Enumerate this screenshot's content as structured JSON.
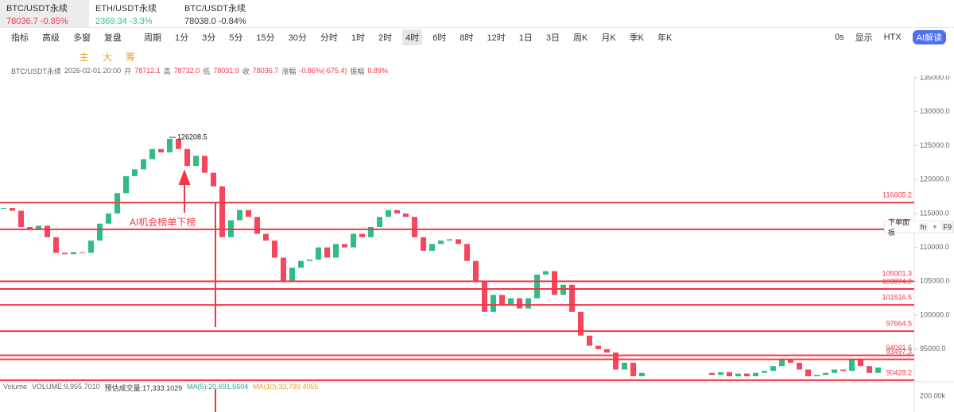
{
  "tabs": [
    {
      "symbol": "BTC/USDT永续",
      "price": "78036.7",
      "change": "-0.85%"
    },
    {
      "symbol": "ETH/USDT永续",
      "price": "2369.34",
      "change": "-3.3%"
    },
    {
      "symbol": "BTC/USDT永续",
      "price": "78038.0",
      "change": "-0.84%"
    }
  ],
  "toolbar": {
    "tools": [
      "指标",
      "高级",
      "多窗",
      "复盘",
      "周期"
    ],
    "periods": [
      {
        "label": "1分"
      },
      {
        "label": "3分"
      },
      {
        "label": "5分"
      },
      {
        "label": "15分"
      },
      {
        "label": "30分"
      },
      {
        "label": "分时"
      },
      {
        "label": "1时"
      },
      {
        "label": "2时"
      },
      {
        "label": "4时",
        "active": true
      },
      {
        "label": "6时"
      },
      {
        "label": "8时"
      },
      {
        "label": "12时"
      },
      {
        "label": "1日"
      },
      {
        "label": "3日"
      },
      {
        "label": "周K"
      },
      {
        "label": "月K"
      },
      {
        "label": "季K"
      },
      {
        "label": "年K"
      }
    ],
    "right": {
      "countdown": "0s",
      "display": "显示",
      "exchange": "HTX",
      "ai": "AI解读"
    }
  },
  "drawing_bar": [
    "主",
    "大",
    "筹"
  ],
  "info_bar": {
    "symbol": "BTC/USDT永续",
    "time": "2026-02-01 20:00",
    "fields": [
      {
        "label": "开",
        "value": "78712.1"
      },
      {
        "label": "高",
        "value": "78732.0"
      },
      {
        "label": "低",
        "value": "78031.9"
      },
      {
        "label": "收",
        "value": "78036.7"
      },
      {
        "label": "涨幅",
        "value": "-0.86%(-675.4)"
      },
      {
        "label": "振幅",
        "value": "0.89%"
      }
    ]
  },
  "chart_data": {
    "type": "candlestick",
    "closes": [
      115800,
      115400,
      113000,
      112600,
      113200,
      111500,
      109200,
      109000,
      109300,
      109200,
      111000,
      113500,
      115000,
      118000,
      120500,
      121500,
      123000,
      124500,
      124000,
      126000,
      124500,
      122000,
      123500,
      121000,
      119000,
      111500,
      114000,
      115500,
      114500,
      112000,
      111000,
      108500,
      105000,
      107000,
      108000,
      108200,
      110000,
      108500,
      110500,
      110000,
      112000,
      111500,
      113000,
      114500,
      115500,
      115000,
      114500,
      111500,
      109500,
      110500,
      111000,
      111200,
      110500,
      108000,
      105000,
      100500,
      103000,
      101500,
      102500,
      101000,
      102500,
      106000,
      106500,
      103000,
      104500,
      100500,
      97000,
      95500,
      95000,
      94500,
      92000,
      93000,
      91000,
      91500,
      null,
      null,
      null,
      null,
      null,
      null,
      null,
      91200,
      91600,
      91000,
      91400,
      91000,
      91500,
      91800,
      92500,
      93500,
      93000,
      92000,
      91000,
      91200,
      91500,
      92000,
      91800,
      93500,
      92500,
      91500,
      92300
    ],
    "up_color": "#2ebd85",
    "down_color": "#f6465d",
    "ylim": [
      90300,
      135350
    ],
    "yticks": [
      {
        "value": 95000,
        "label": "95000.0"
      },
      {
        "value": 100000,
        "label": "100000.0"
      },
      {
        "value": 105000,
        "label": "105000.0"
      },
      {
        "value": 110000,
        "label": "110000.0"
      },
      {
        "value": 115000,
        "label": "115000.0"
      },
      {
        "value": 120000,
        "label": "120000.0"
      },
      {
        "value": 125000,
        "label": "125000.0"
      },
      {
        "value": 130000,
        "label": "130000.0"
      },
      {
        "value": 135000,
        "label": "135000.0"
      }
    ],
    "levels": [
      116605.2,
      112661,
      105001.3,
      103874.2,
      101516.5,
      97664.5,
      94091.6,
      93497.3,
      90428.2
    ],
    "level_color": "#f23645",
    "high_marker": 126208.5,
    "annotation": "AI机会榜单下榜"
  },
  "volume_panel": {
    "name": "Volume",
    "fields": [
      "VOLUME:9,955.7010",
      "预估成交量:17,333.1029",
      "MA(5):20,691.5604",
      "MA(10):33,799.4055"
    ],
    "axis_label": "200.00k"
  },
  "order_panel": {
    "title": "下单面板",
    "keys": [
      "fn",
      "+",
      "F9"
    ]
  }
}
